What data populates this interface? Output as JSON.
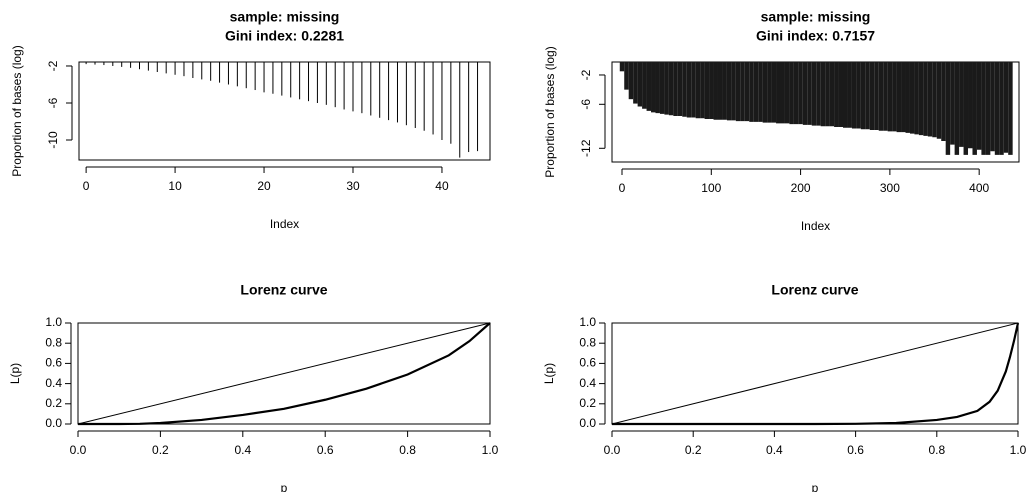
{
  "chart_data": [
    {
      "type": "stem",
      "title": "sample: missing",
      "subtitle": "Gini index: 0.2281",
      "xlabel": "Index",
      "ylabel": "Proportion of bases (log)",
      "color": "#000000",
      "x": [
        0,
        1,
        2,
        3,
        4,
        5,
        6,
        7,
        8,
        9,
        10,
        11,
        12,
        13,
        14,
        15,
        16,
        17,
        18,
        19,
        20,
        21,
        22,
        23,
        24,
        25,
        26,
        27,
        28,
        29,
        30,
        31,
        32,
        33,
        34,
        35,
        36,
        37,
        38,
        39,
        40,
        41,
        42,
        43,
        44
      ],
      "values": [
        -1.8,
        -1.85,
        -1.9,
        -2.0,
        -2.1,
        -2.2,
        -2.35,
        -2.5,
        -2.65,
        -2.8,
        -2.95,
        -3.1,
        -3.3,
        -3.45,
        -3.6,
        -3.8,
        -4.0,
        -4.2,
        -4.4,
        -4.6,
        -4.85,
        -5.0,
        -5.2,
        -5.4,
        -5.6,
        -5.8,
        -6.0,
        -6.2,
        -6.45,
        -6.7,
        -6.9,
        -7.1,
        -7.35,
        -7.6,
        -7.85,
        -8.1,
        -8.4,
        -8.7,
        -9.0,
        -9.4,
        -10.0,
        -10.4,
        -11.9,
        -11.3,
        -11.2
      ],
      "xlim": [
        -0.8,
        45.4
      ],
      "xticks": [
        0,
        10,
        20,
        30,
        40
      ],
      "ylim": [
        -12.16,
        -1.57
      ],
      "yticks": [
        -2,
        -6,
        -10
      ]
    },
    {
      "type": "stem",
      "title": "sample: missing",
      "subtitle": "Gini index: 0.7157",
      "xlabel": "Index",
      "ylabel": "Proportion of bases (log)",
      "color": "#1a1a1a",
      "x": [
        0,
        5,
        10,
        15,
        20,
        25,
        30,
        35,
        40,
        45,
        50,
        55,
        60,
        65,
        70,
        75,
        80,
        85,
        90,
        95,
        100,
        105,
        110,
        115,
        120,
        125,
        130,
        135,
        140,
        145,
        150,
        155,
        160,
        165,
        170,
        175,
        180,
        185,
        190,
        195,
        200,
        205,
        210,
        215,
        220,
        225,
        230,
        235,
        240,
        245,
        250,
        255,
        260,
        265,
        270,
        275,
        280,
        285,
        290,
        295,
        300,
        305,
        310,
        315,
        320,
        325,
        330,
        335,
        340,
        345,
        350,
        355,
        360,
        365,
        370,
        375,
        380,
        385,
        390,
        395,
        400,
        405,
        410,
        415,
        420,
        425,
        430,
        435
      ],
      "values": [
        -1.5,
        -4.0,
        -5.3,
        -5.9,
        -6.3,
        -6.6,
        -6.9,
        -7.1,
        -7.2,
        -7.3,
        -7.4,
        -7.5,
        -7.6,
        -7.6,
        -7.7,
        -7.8,
        -7.8,
        -7.9,
        -7.9,
        -8.0,
        -8.0,
        -8.1,
        -8.1,
        -8.1,
        -8.2,
        -8.2,
        -8.3,
        -8.3,
        -8.3,
        -8.4,
        -8.4,
        -8.4,
        -8.5,
        -8.5,
        -8.5,
        -8.6,
        -8.6,
        -8.6,
        -8.7,
        -8.7,
        -8.7,
        -8.8,
        -8.8,
        -8.9,
        -8.9,
        -9.0,
        -9.0,
        -9.0,
        -9.1,
        -9.1,
        -9.2,
        -9.2,
        -9.3,
        -9.3,
        -9.4,
        -9.4,
        -9.5,
        -9.5,
        -9.6,
        -9.6,
        -9.7,
        -9.7,
        -9.8,
        -9.8,
        -9.9,
        -10.0,
        -10.1,
        -10.2,
        -10.3,
        -10.4,
        -10.5,
        -10.7,
        -11.0,
        -12.9,
        -11.5,
        -12.9,
        -11.8,
        -12.9,
        -12.0,
        -12.9,
        -12.2,
        -12.9,
        -12.9,
        -12.4,
        -12.9,
        -12.9,
        -12.6,
        -12.9
      ],
      "xlim": [
        -11.2,
        444.6
      ],
      "xticks": [
        0,
        100,
        200,
        300,
        400
      ],
      "ylim": [
        -13.87,
        -0.23
      ],
      "yticks": [
        -2,
        -6,
        -12
      ]
    },
    {
      "type": "line",
      "title": "Lorenz curve",
      "xlabel": "p",
      "ylabel": "L(p)",
      "color": "#000000",
      "x": [
        0,
        0.1,
        0.15,
        0.2,
        0.3,
        0.4,
        0.5,
        0.6,
        0.7,
        0.8,
        0.9,
        0.95,
        1
      ],
      "values": [
        0,
        0,
        0.002,
        0.01,
        0.04,
        0.09,
        0.15,
        0.24,
        0.35,
        0.49,
        0.68,
        0.82,
        1
      ],
      "reference_line": {
        "x": [
          0,
          1
        ],
        "values": [
          0,
          1
        ]
      },
      "xlim": [
        0,
        1
      ],
      "xticks": [
        {
          "value": 0,
          "label": "0.0"
        },
        0.2,
        0.4,
        0.6,
        0.8,
        {
          "value": 1,
          "label": "1.0"
        }
      ],
      "ylim": [
        0,
        1
      ],
      "yticks": [
        {
          "value": 0,
          "label": "0.0"
        },
        0.2,
        0.4,
        0.6,
        0.8,
        {
          "value": 1,
          "label": "1.0"
        }
      ]
    },
    {
      "type": "line",
      "title": "Lorenz curve",
      "xlabel": "p",
      "ylabel": "L(p)",
      "color": "#000000",
      "x": [
        0,
        0.5,
        0.6,
        0.7,
        0.8,
        0.85,
        0.9,
        0.93,
        0.95,
        0.97,
        0.98,
        0.99,
        1
      ],
      "values": [
        0,
        0,
        0.002,
        0.01,
        0.04,
        0.07,
        0.13,
        0.22,
        0.33,
        0.52,
        0.66,
        0.82,
        1
      ],
      "reference_line": {
        "x": [
          0,
          1
        ],
        "values": [
          0,
          1
        ]
      },
      "xlim": [
        0,
        1
      ],
      "xticks": [
        {
          "value": 0,
          "label": "0.0"
        },
        0.2,
        0.4,
        0.6,
        0.8,
        {
          "value": 1,
          "label": "1.0"
        }
      ],
      "ylim": [
        0,
        1
      ],
      "yticks": [
        {
          "value": 0,
          "label": "0.0"
        },
        0.2,
        0.4,
        0.6,
        0.8,
        {
          "value": 1,
          "label": "1.0"
        }
      ]
    }
  ]
}
